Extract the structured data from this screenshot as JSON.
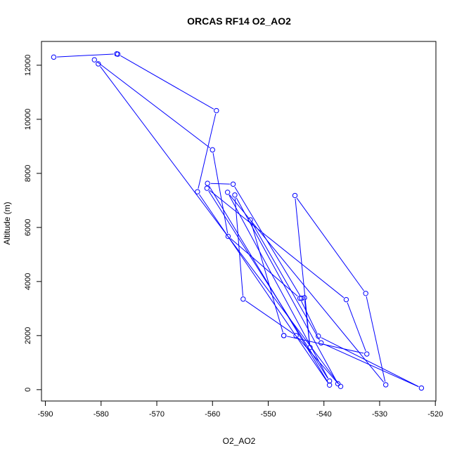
{
  "chart_data": {
    "type": "line",
    "title": "ORCAS RF14 O2_AO2",
    "xlabel": "O2_AO2",
    "ylabel": "Altitude (m)",
    "xlim": [
      -590,
      -520
    ],
    "ylim": [
      0,
      12500
    ],
    "x_ticks": [
      -590,
      -580,
      -570,
      -560,
      -550,
      -540,
      -530,
      -520
    ],
    "y_ticks": [
      0,
      2000,
      4000,
      6000,
      8000,
      10000,
      12000
    ],
    "x_tick_labels": [
      "-590",
      "-580",
      "-570",
      "-560",
      "-550",
      "-540",
      "-530",
      "-520"
    ],
    "y_tick_labels": [
      "0",
      "2000",
      "4000",
      "6000",
      "8000",
      "10000",
      "12000"
    ],
    "grid": false,
    "legend": "none",
    "series": [
      {
        "color": "#0000ff",
        "markers": "open-circle",
        "points": [
          {
            "x": -588.5,
            "y": 12300
          },
          {
            "x": -577.2,
            "y": 12420
          },
          {
            "x": -577.0,
            "y": 12410
          },
          {
            "x": -559.3,
            "y": 10320
          },
          {
            "x": -562.7,
            "y": 7320
          },
          {
            "x": -539.0,
            "y": 170
          },
          {
            "x": -560.9,
            "y": 7630
          },
          {
            "x": -556.3,
            "y": 7600
          },
          {
            "x": -544.0,
            "y": 3380
          },
          {
            "x": -543.5,
            "y": 3400
          },
          {
            "x": -542.5,
            "y": 1560
          },
          {
            "x": -545.2,
            "y": 7180
          },
          {
            "x": -532.5,
            "y": 3560
          },
          {
            "x": -528.9,
            "y": 180
          },
          {
            "x": -557.3,
            "y": 7300
          },
          {
            "x": -539.0,
            "y": 320
          },
          {
            "x": -561.0,
            "y": 7450
          },
          {
            "x": -536.0,
            "y": 3330
          },
          {
            "x": -532.3,
            "y": 1320
          },
          {
            "x": -547.2,
            "y": 2000
          },
          {
            "x": -547.2,
            "y": 2000
          },
          {
            "x": -553.2,
            "y": 6280
          },
          {
            "x": -540.5,
            "y": 1730
          },
          {
            "x": -522.5,
            "y": 60
          },
          {
            "x": -541.0,
            "y": 1980
          },
          {
            "x": -544.3,
            "y": 3380
          },
          {
            "x": -557.2,
            "y": 5670
          },
          {
            "x": -560.0,
            "y": 8870
          },
          {
            "x": -581.2,
            "y": 12200
          },
          {
            "x": -580.5,
            "y": 12050
          },
          {
            "x": -537.0,
            "y": 120
          },
          {
            "x": -545.0,
            "y": 2000
          },
          {
            "x": -554.5,
            "y": 3350
          },
          {
            "x": -556.0,
            "y": 7200
          },
          {
            "x": -537.5,
            "y": 220
          }
        ]
      }
    ]
  }
}
